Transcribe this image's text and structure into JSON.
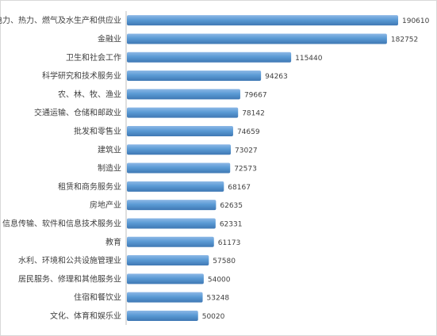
{
  "chart_data": {
    "type": "bar",
    "orientation": "horizontal",
    "title": "",
    "xlabel": "",
    "ylabel": "",
    "grid": false,
    "legend": "none",
    "bar_color": "#5b9bd5",
    "categories": [
      "电力、热力、燃气及水生产和供应业",
      "金融业",
      "卫生和社会工作",
      "科学研究和技术服务业",
      "农、林、牧、渔业",
      "交通运输、仓储和邮政业",
      "批发和零售业",
      "建筑业",
      "制造业",
      "租赁和商务服务业",
      "房地产业",
      "信息传输、软件和信息技术服务业",
      "教育",
      "水利、环境和公共设施管理业",
      "居民服务、修理和其他服务业",
      "住宿和餐饮业",
      "文化、体育和娱乐业"
    ],
    "values": [
      190610,
      182752,
      115440,
      94263,
      79667,
      78142,
      74659,
      73027,
      72573,
      68167,
      62635,
      62331,
      61173,
      57580,
      54000,
      53248,
      50020
    ],
    "xlim": [
      0,
      200000
    ]
  }
}
